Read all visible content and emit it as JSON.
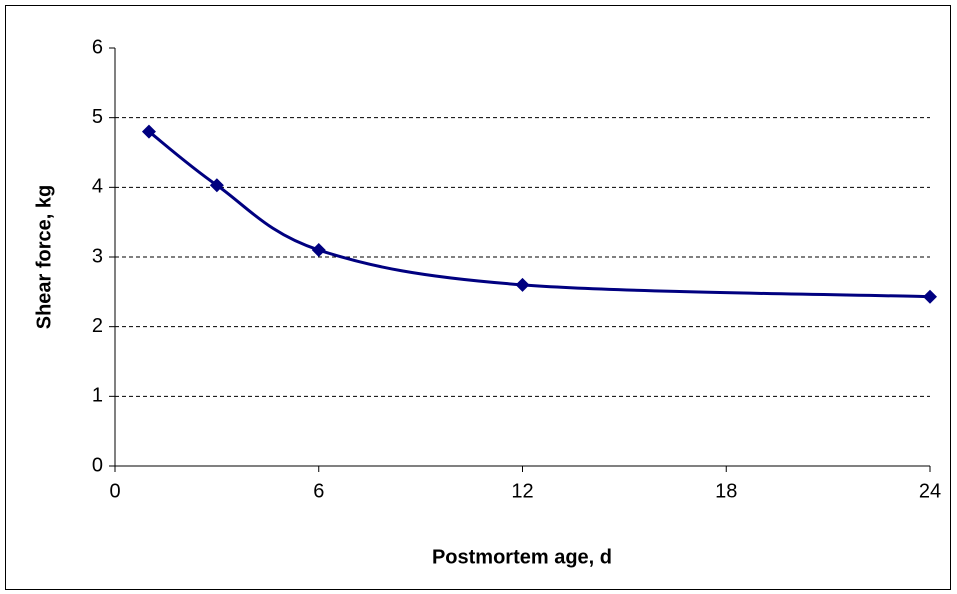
{
  "chart_data": {
    "type": "line",
    "xlabel": "Postmortem age, d",
    "ylabel": "Shear force, kg",
    "x": [
      1,
      3,
      6,
      12,
      24
    ],
    "series": [
      {
        "color": "#000080",
        "values": [
          4.8,
          4.03,
          3.1,
          2.6,
          2.43
        ]
      }
    ],
    "xlim": [
      0,
      24
    ],
    "xticks": [
      0,
      6,
      12,
      18,
      24
    ],
    "ylim": [
      0,
      6
    ],
    "yticks": [
      0,
      1,
      2,
      3,
      4,
      5,
      6
    ],
    "grid": true,
    "smooth": true,
    "marker": "diamond"
  }
}
